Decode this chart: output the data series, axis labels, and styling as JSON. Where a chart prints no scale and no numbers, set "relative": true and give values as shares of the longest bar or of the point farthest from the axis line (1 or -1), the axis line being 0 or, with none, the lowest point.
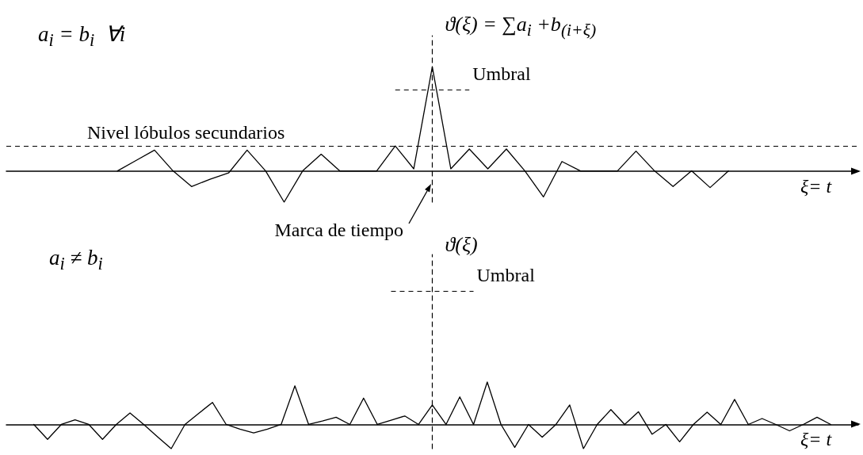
{
  "chart_data": [
    {
      "type": "line",
      "relative": true,
      "title": "a$_{i}$ = b$_{i}$  ∀i",
      "xlabel": "ξ= t",
      "ylabel": "ϑ(ξ) = ∑a$_{i}$ +b$_{(i+ξ)}$",
      "color": "#000000",
      "categories": [
        null,
        null,
        null,
        null,
        null,
        null,
        null,
        null,
        null,
        null,
        null,
        null,
        null,
        null,
        null,
        null,
        null,
        null,
        null,
        null,
        null,
        null,
        null,
        null,
        null,
        null,
        null,
        null,
        null,
        null,
        null,
        null,
        null,
        null,
        null,
        null,
        null,
        null,
        null,
        null,
        null,
        null,
        null,
        null,
        null,
        null,
        null
      ],
      "values": [
        null,
        null,
        null,
        null,
        null,
        null,
        0,
        0.1,
        0.2,
        0,
        -0.15,
        -0.08,
        -0.02,
        0.2,
        0,
        -0.3,
        0,
        0.16,
        0,
        0,
        0,
        0.24,
        0.02,
        1,
        0.02,
        0.21,
        0.02,
        0.21,
        0,
        -0.25,
        0.09,
        0,
        0,
        0,
        0.19,
        0,
        -0.15,
        0,
        -0.16,
        0,
        null,
        null,
        null,
        null,
        null,
        null,
        null
      ],
      "ref_lines": [
        {
          "axis": "y",
          "value": 0.78,
          "label": "Umbral",
          "line_style": "dashed"
        },
        {
          "axis": "y",
          "value": 0.24,
          "label": "Nivel lóbulos secundarios",
          "line_style": "dashed"
        }
      ],
      "annotations": [
        "Marca de tiempo"
      ]
    },
    {
      "type": "line",
      "relative": true,
      "title": "a$_{i}$ ≠ b$_{i}$",
      "xlabel": "ξ= t",
      "ylabel": "ϑ(ξ)",
      "color": "#000000",
      "categories": [
        null,
        null,
        null,
        null,
        null,
        null,
        null,
        null,
        null,
        null,
        null,
        null,
        null,
        null,
        null,
        null,
        null,
        null,
        null,
        null,
        null,
        null,
        null,
        null,
        null,
        null,
        null,
        null,
        null,
        null,
        null,
        null,
        null,
        null,
        null,
        null,
        null,
        null,
        null,
        null,
        null,
        null,
        null,
        null,
        null,
        null,
        null,
        null,
        null,
        null,
        null,
        null,
        null,
        null,
        null,
        null,
        null,
        null,
        null,
        null,
        null,
        null,
        null
      ],
      "values": [
        null,
        null,
        0,
        -0.35,
        0,
        0.11,
        0,
        -0.35,
        0,
        0.27,
        0,
        -0.29,
        -0.57,
        0,
        0.26,
        0.52,
        0,
        -0.11,
        -0.2,
        -0.11,
        0,
        0.91,
        0,
        0.08,
        0.17,
        0,
        0.62,
        0,
        0.1,
        0.2,
        0,
        0.46,
        0,
        0.65,
        0,
        1,
        0,
        -0.54,
        0,
        -0.3,
        0,
        0.46,
        -0.57,
        0,
        0.35,
        0,
        0.3,
        -0.23,
        0,
        -0.41,
        0,
        0.29,
        0,
        0.59,
        0,
        0.14,
        0,
        -0.15,
        0,
        0.17,
        0,
        null,
        null
      ],
      "ref_lines": [
        {
          "axis": "y",
          "value": 3.15,
          "label": "Umbral",
          "line_style": "dashed"
        }
      ]
    }
  ]
}
